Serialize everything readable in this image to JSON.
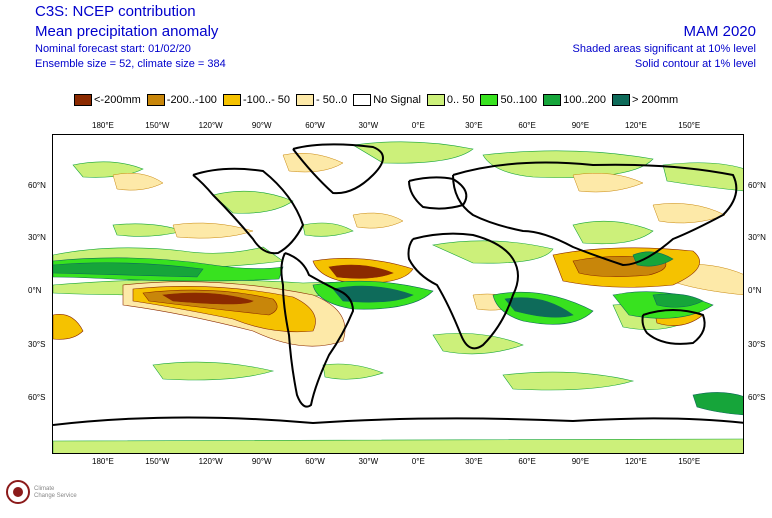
{
  "header": {
    "title": "C3S: NCEP contribution",
    "subtitle": "Mean precipitation anomaly",
    "forecast_start": "Nominal forecast start: 01/02/20",
    "ensemble": "Ensemble size = 52, climate size = 384",
    "season": "MAM 2020",
    "sig_shaded": "Shaded areas significant at 10% level",
    "sig_contour": "Solid contour at 1% level"
  },
  "legend": [
    {
      "label": "<-200mm",
      "color": "#8b2a00"
    },
    {
      "label": "-200..-100",
      "color": "#c8860a"
    },
    {
      "label": "-100..- 50",
      "color": "#f5c200"
    },
    {
      "label": "- 50..0",
      "color": "#fde9a8"
    },
    {
      "label": "No Signal",
      "color": "#ffffff"
    },
    {
      "label": "0.. 50",
      "color": "#ccf07a"
    },
    {
      "label": "50..100",
      "color": "#38e21f"
    },
    {
      "label": "100..200",
      "color": "#16a53a"
    },
    {
      "label": "> 200mm",
      "color": "#0e6b5a"
    }
  ],
  "lon_ticks": [
    "180°E",
    "150°W",
    "120°W",
    "90°W",
    "60°W",
    "30°W",
    "0°E",
    "30°E",
    "60°E",
    "90°E",
    "120°E",
    "150°E"
  ],
  "lat_ticks": [
    "60°N",
    "30°N",
    "0°N",
    "30°S",
    "60°S"
  ],
  "logo": {
    "text_line1": "Climate",
    "text_line2": "Change Service"
  }
}
